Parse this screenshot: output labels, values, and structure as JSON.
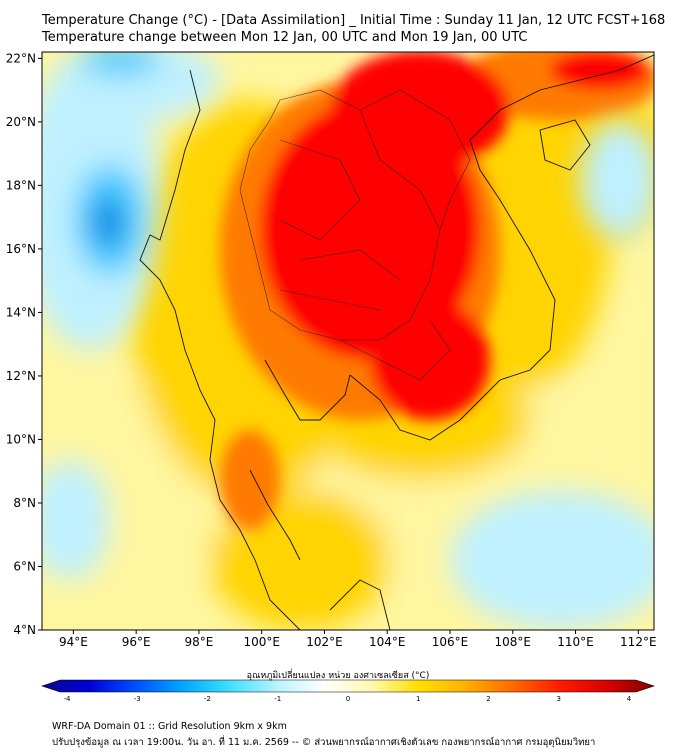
{
  "header": {
    "title_line1": "Temperature Change (°C) - [Data Assimilation] _ Initial Time : Sunday 11 Jan, 12 UTC FCST+168",
    "title_line2": "Temperature change between Mon 12 Jan, 00 UTC and Mon 19 Jan, 00 UTC"
  },
  "map": {
    "lat_ticks": [
      "22°N",
      "20°N",
      "18°N",
      "16°N",
      "14°N",
      "12°N",
      "10°N",
      "8°N",
      "6°N",
      "4°N"
    ],
    "lon_ticks": [
      "94°E",
      "96°E",
      "98°E",
      "100°E",
      "102°E",
      "104°E",
      "106°E",
      "108°E",
      "110°E",
      "112°E"
    ],
    "lat_range": [
      4,
      22.2
    ],
    "lon_range": [
      93,
      112.5
    ],
    "field_colors": {
      "hot": "#ff0000",
      "warm": "#ff7a00",
      "mild": "#ffd400",
      "slight": "#fff6a0",
      "neutral": "#ffffff",
      "cool": "#bff0ff",
      "cold": "#3ec8ff",
      "colder": "#0070d8"
    }
  },
  "colorbar": {
    "label": "อุณหภูมิเปลี่ยนแปลง หน่วย องศาเซลเซียส (°C)",
    "ticks": [
      "-4",
      "-3",
      "-2",
      "-1",
      "0",
      "1",
      "2",
      "3",
      "4"
    ],
    "vmin": -4,
    "vmax": 4,
    "colors": [
      "#0a0a8c",
      "#0000d8",
      "#0050ff",
      "#00a8ff",
      "#40e0ff",
      "#b8f4ff",
      "#ffffff",
      "#fff8b0",
      "#ffe000",
      "#ffb000",
      "#ff6a00",
      "#ff1a00",
      "#d80000",
      "#800000"
    ]
  },
  "footer": {
    "line1": "WRF-DA Domain 01 :: Grid Resolution 9km x 9km",
    "line2": "ปรับปรุงข้อมูล ณ เวลา 19:00น. วัน อา. ที่ 11 ม.ค. 2569 -- © ส่วนพยากรณ์อากาศเชิงตัวเลข กองพยากรณ์อากาศ กรมอุตุนิยมวิทยา"
  }
}
